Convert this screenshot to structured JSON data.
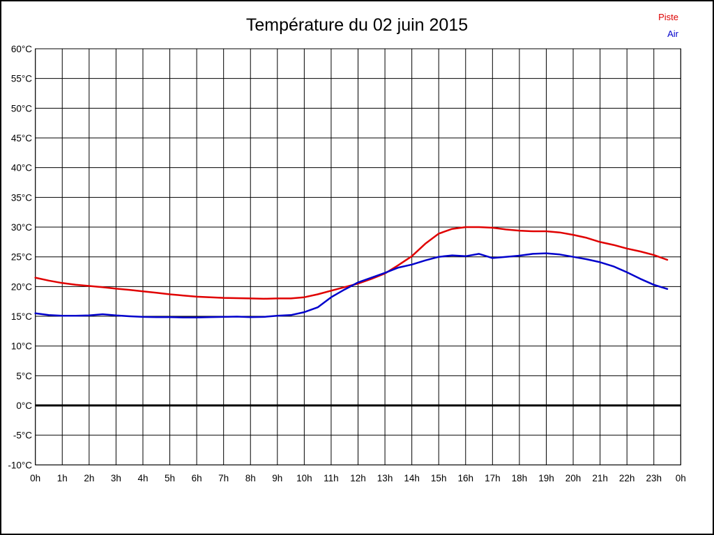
{
  "window": {
    "title": "Température du 02 juin 2015"
  },
  "legend": [
    {
      "label": "Piste",
      "color": "#dd0000"
    },
    {
      "label": "Air",
      "color": "#0000cc"
    }
  ],
  "chart_data": {
    "type": "line",
    "title": "Température du 02 juin 2015",
    "xlabel": "",
    "ylabel": "",
    "xlim": [
      0,
      24
    ],
    "ylim": [
      -10,
      60
    ],
    "y_step": 5,
    "grid": true,
    "zero_line_bold": true,
    "legend_position": "top-right",
    "x_tick_labels": [
      "0h",
      "1h",
      "2h",
      "3h",
      "4h",
      "5h",
      "6h",
      "7h",
      "8h",
      "9h",
      "10h",
      "11h",
      "12h",
      "13h",
      "14h",
      "15h",
      "16h",
      "17h",
      "18h",
      "19h",
      "20h",
      "21h",
      "22h",
      "23h",
      "0h"
    ],
    "y_tick_labels": [
      "60°C",
      "55°C",
      "50°C",
      "45°C",
      "40°C",
      "35°C",
      "30°C",
      "25°C",
      "20°C",
      "15°C",
      "10°C",
      "5°C",
      "0°C",
      "-5°C",
      "-10°C"
    ],
    "x_step_hours": 0.5,
    "series": [
      {
        "name": "Piste",
        "color": "#e00000",
        "values": [
          21.5,
          21.0,
          20.6,
          20.3,
          20.1,
          19.9,
          19.65,
          19.45,
          19.2,
          18.95,
          18.7,
          18.5,
          18.3,
          18.2,
          18.1,
          18.05,
          18.0,
          17.95,
          18.0,
          18.0,
          18.2,
          18.7,
          19.3,
          19.9,
          20.5,
          21.3,
          22.2,
          23.6,
          25.1,
          27.2,
          28.9,
          29.7,
          30.0,
          30.0,
          29.9,
          29.6,
          29.4,
          29.3,
          29.3,
          29.1,
          28.7,
          28.2,
          27.5,
          27.0,
          26.4,
          25.9,
          25.3,
          24.5
        ]
      },
      {
        "name": "Air",
        "color": "#0000cc",
        "values": [
          15.5,
          15.2,
          15.1,
          15.1,
          15.15,
          15.35,
          15.15,
          15.0,
          14.9,
          14.85,
          14.85,
          14.8,
          14.8,
          14.85,
          14.9,
          14.95,
          14.85,
          14.9,
          15.1,
          15.2,
          15.7,
          16.5,
          18.2,
          19.5,
          20.7,
          21.5,
          22.3,
          23.2,
          23.7,
          24.4,
          25.0,
          25.25,
          25.1,
          25.5,
          24.8,
          25.0,
          25.2,
          25.5,
          25.6,
          25.4,
          25.0,
          24.6,
          24.1,
          23.4,
          22.4,
          21.3,
          20.3,
          19.6
        ]
      }
    ]
  }
}
